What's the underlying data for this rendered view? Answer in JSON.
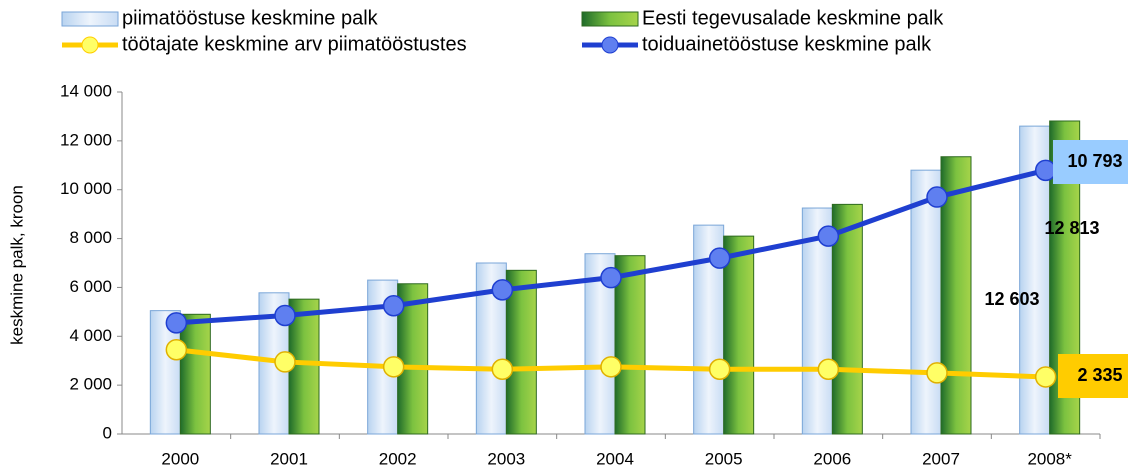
{
  "chart_data": {
    "type": "bar",
    "ylabel": "keskmine palk, kroon",
    "categories": [
      "2000",
      "2001",
      "2002",
      "2003",
      "2004",
      "2005",
      "2006",
      "2007",
      "2008*"
    ],
    "series": [
      {
        "name": "piimatööstuse keskmine palk",
        "type": "bar",
        "color": "#dce9f8",
        "values": [
          5050,
          5780,
          6300,
          7000,
          7380,
          8550,
          9250,
          10800,
          12603
        ],
        "value_labels": [
          null,
          null,
          null,
          null,
          null,
          null,
          null,
          null,
          "12 603"
        ]
      },
      {
        "name": "Eesti tegevusalade keskmine palk",
        "type": "bar",
        "color": "#5aa02c",
        "values": [
          4900,
          5520,
          6150,
          6700,
          7300,
          8100,
          9400,
          11350,
          12813
        ],
        "value_labels": [
          null,
          null,
          null,
          null,
          null,
          null,
          null,
          null,
          "12 813"
        ]
      },
      {
        "name": "töötajate keskmine arv piimatööstustes",
        "type": "line",
        "color": "#ffcc00",
        "values": [
          3450,
          2950,
          2750,
          2650,
          2750,
          2650,
          2650,
          2500,
          2335
        ],
        "value_labels": [
          null,
          null,
          null,
          null,
          null,
          null,
          null,
          null,
          "2 335"
        ]
      },
      {
        "name": "toiduainetööstuse keskmine palk",
        "type": "line",
        "color": "#1f3fd0",
        "values": [
          4550,
          4850,
          5250,
          5900,
          6400,
          7200,
          8100,
          9700,
          10793
        ],
        "value_labels": [
          null,
          null,
          null,
          null,
          null,
          null,
          null,
          null,
          "10 793"
        ]
      }
    ],
    "ylim": [
      0,
      14000
    ],
    "yticks": [
      0,
      {
        "value": 2000,
        "label": "2 000"
      },
      {
        "value": 4000,
        "label": "4 000"
      },
      {
        "value": 6000,
        "label": "6 000"
      },
      {
        "value": 8000,
        "label": "8 000"
      },
      {
        "value": 10000,
        "label": "10 000"
      },
      {
        "value": 12000,
        "label": "12 000"
      },
      {
        "value": 14000,
        "label": "14 000"
      }
    ]
  }
}
